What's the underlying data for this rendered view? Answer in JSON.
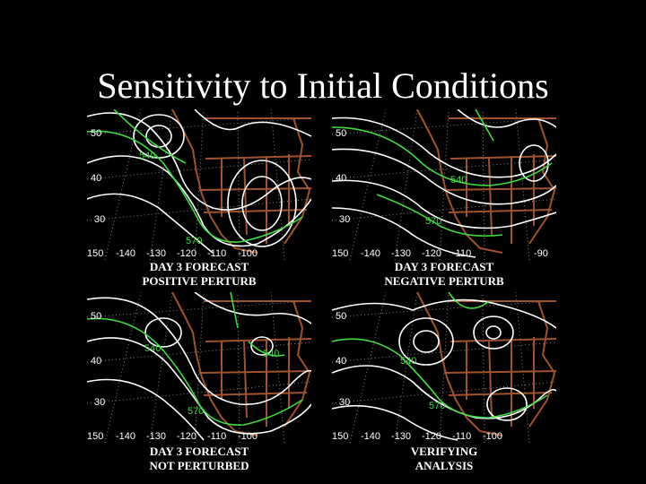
{
  "title": "Sensitivity to Initial Conditions",
  "colors": {
    "background": "#000000",
    "white_contours": "#ffffff",
    "green_contours": "#3fdc3f",
    "map_lines": "#a0522d"
  },
  "panels": [
    {
      "caption1": "DAY 3 FORECAST",
      "caption2": "POSITIVE PERTURB",
      "lat_labels": [
        "50",
        "40",
        "30"
      ],
      "lon_labels": [
        "150",
        "-140",
        "-130",
        "-120",
        "-110",
        "-100"
      ],
      "contour_labels": [
        "540",
        "570"
      ]
    },
    {
      "caption1": "DAY 3 FORECAST",
      "caption2": "NEGATIVE PERTURB",
      "lat_labels": [
        "50",
        "40",
        "30"
      ],
      "lon_labels": [
        "150",
        "-140",
        "-130",
        "-120",
        "-110",
        "-90"
      ],
      "contour_labels": [
        "540",
        "570"
      ]
    },
    {
      "caption1": "DAY 3 FORECAST",
      "caption2": "NOT PERTURBED",
      "lat_labels": [
        "50",
        "40",
        "30"
      ],
      "lon_labels": [
        "150",
        "-140",
        "-130",
        "-120",
        "-110",
        "-100"
      ],
      "contour_labels": [
        "540",
        "540",
        "570"
      ]
    },
    {
      "caption1": "VERIFYING",
      "caption2": "ANALYSIS",
      "lat_labels": [
        "50",
        "40",
        "30"
      ],
      "lon_labels": [
        "150",
        "-140",
        "-130",
        "-120",
        "-110",
        "-100"
      ],
      "contour_labels": [
        "540",
        "570"
      ]
    }
  ]
}
